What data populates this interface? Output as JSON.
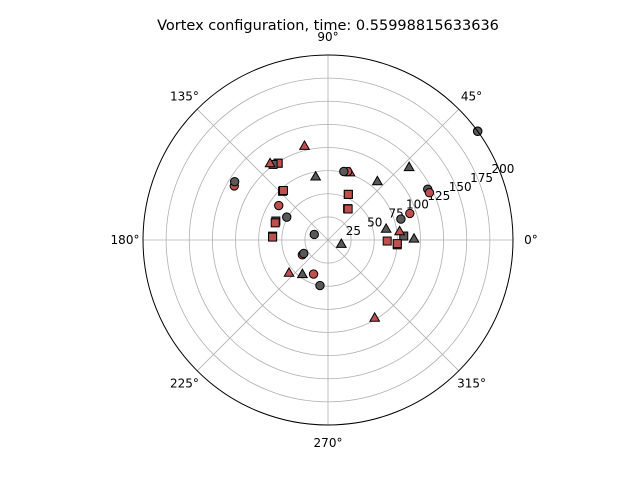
{
  "chart_data": {
    "type": "scatter",
    "projection": "polar",
    "title": "Vortex configuration, time: 0.55998815633636",
    "rlim": [
      0,
      200
    ],
    "r_ticks": [
      "25",
      "50",
      "75",
      "100",
      "125",
      "150",
      "175",
      "200"
    ],
    "r_tick_values": [
      25,
      50,
      75,
      100,
      125,
      150,
      175,
      200
    ],
    "theta_ticks": [
      "0°",
      "45°",
      "90°",
      "135°",
      "180°",
      "225°",
      "270°",
      "315°"
    ],
    "theta_tick_values": [
      0,
      45,
      90,
      135,
      180,
      225,
      270,
      315
    ],
    "grid": true,
    "colors": {
      "red": "#c0504d",
      "gray": "#595959"
    },
    "points": [
      {
        "theta": 3,
        "r": 82,
        "marker": "square",
        "color": "gray"
      },
      {
        "theta": -1,
        "r": 64,
        "marker": "square",
        "color": "red"
      },
      {
        "theta": -4,
        "r": 75,
        "marker": "square",
        "color": "gray"
      },
      {
        "theta": -3,
        "r": 75,
        "marker": "square",
        "color": "red"
      },
      {
        "theta": 1,
        "r": 93,
        "marker": "triangle",
        "color": "gray"
      },
      {
        "theta": 7,
        "r": 78,
        "marker": "triangle",
        "color": "red"
      },
      {
        "theta": 11,
        "r": 64,
        "marker": "triangle",
        "color": "gray"
      },
      {
        "theta": 16,
        "r": 82,
        "marker": "circle",
        "color": "gray"
      },
      {
        "theta": 18,
        "r": 93,
        "marker": "circle",
        "color": "red"
      },
      {
        "theta": 27,
        "r": 121,
        "marker": "circle",
        "color": "gray"
      },
      {
        "theta": 25,
        "r": 121,
        "marker": "circle",
        "color": "red"
      },
      {
        "theta": 42,
        "r": 118,
        "marker": "triangle",
        "color": "gray"
      },
      {
        "theta": 36,
        "r": 200,
        "marker": "circle",
        "color": "red"
      },
      {
        "theta": 36,
        "r": 200,
        "marker": "circle",
        "color": "gray"
      },
      {
        "theta": 50,
        "r": 83,
        "marker": "triangle",
        "color": "gray"
      },
      {
        "theta": 58,
        "r": 40,
        "marker": "square",
        "color": "gray"
      },
      {
        "theta": 57,
        "r": 40,
        "marker": "square",
        "color": "red"
      },
      {
        "theta": 66,
        "r": 54,
        "marker": "square",
        "color": "gray"
      },
      {
        "theta": 66,
        "r": 54,
        "marker": "square",
        "color": "red"
      },
      {
        "theta": 72,
        "r": 77,
        "marker": "triangle",
        "color": "red"
      },
      {
        "theta": 74,
        "r": 77,
        "marker": "circle",
        "color": "red"
      },
      {
        "theta": 77,
        "r": 76,
        "marker": "circle",
        "color": "gray"
      },
      {
        "theta": 104,
        "r": 105,
        "marker": "triangle",
        "color": "red"
      },
      {
        "theta": 101,
        "r": 70,
        "marker": "triangle",
        "color": "gray"
      },
      {
        "theta": 123,
        "r": 99,
        "marker": "square",
        "color": "gray"
      },
      {
        "theta": 123,
        "r": 99,
        "marker": "square",
        "color": "red"
      },
      {
        "theta": 126,
        "r": 101,
        "marker": "square",
        "color": "gray"
      },
      {
        "theta": 127,
        "r": 104,
        "marker": "triangle",
        "color": "red"
      },
      {
        "theta": 133,
        "r": 72,
        "marker": "square",
        "color": "gray"
      },
      {
        "theta": 132,
        "r": 72,
        "marker": "square",
        "color": "red"
      },
      {
        "theta": 150,
        "r": 117,
        "marker": "circle",
        "color": "red"
      },
      {
        "theta": 148,
        "r": 119,
        "marker": "circle",
        "color": "gray"
      },
      {
        "theta": 145,
        "r": 65,
        "marker": "circle",
        "color": "red"
      },
      {
        "theta": 151,
        "r": 51,
        "marker": "circle",
        "color": "gray"
      },
      {
        "theta": 160,
        "r": 60,
        "marker": "square",
        "color": "gray"
      },
      {
        "theta": 162,
        "r": 60,
        "marker": "square",
        "color": "red"
      },
      {
        "theta": 176,
        "r": 60,
        "marker": "square",
        "color": "gray"
      },
      {
        "theta": 177,
        "r": 60,
        "marker": "square",
        "color": "red"
      },
      {
        "theta": 158,
        "r": 16,
        "marker": "circle",
        "color": "gray"
      },
      {
        "theta": 210,
        "r": 32,
        "marker": "circle",
        "color": "red"
      },
      {
        "theta": 209,
        "r": 30,
        "marker": "circle",
        "color": "gray"
      },
      {
        "theta": 220,
        "r": 55,
        "marker": "triangle",
        "color": "red"
      },
      {
        "theta": 233,
        "r": 46,
        "marker": "triangle",
        "color": "gray"
      },
      {
        "theta": 247,
        "r": 40,
        "marker": "circle",
        "color": "red"
      },
      {
        "theta": 260,
        "r": 50,
        "marker": "circle",
        "color": "gray"
      },
      {
        "theta": 301,
        "r": 98,
        "marker": "triangle",
        "color": "red"
      },
      {
        "theta": 344,
        "r": 15,
        "marker": "triangle",
        "color": "gray"
      }
    ]
  }
}
